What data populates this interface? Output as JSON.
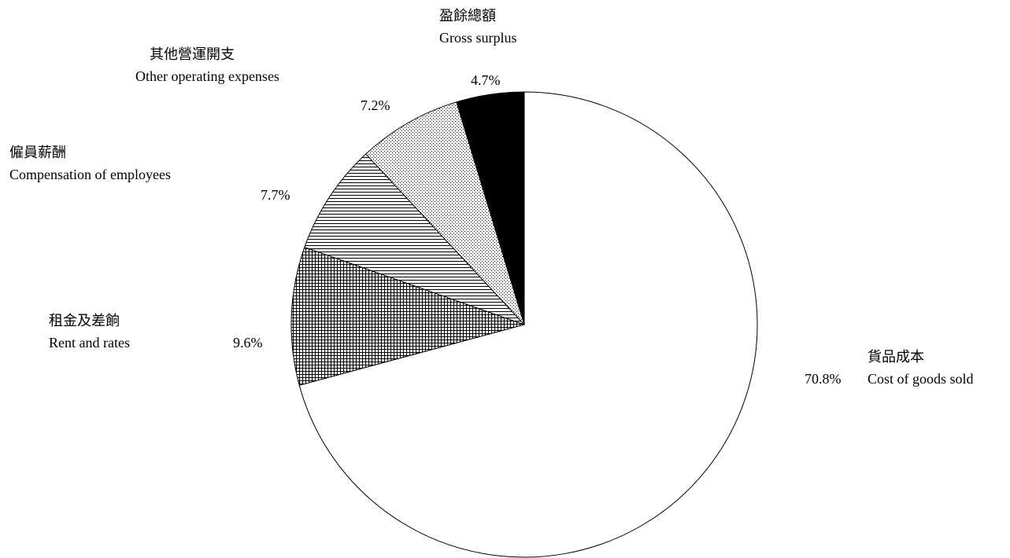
{
  "chart_data": {
    "type": "pie",
    "start_angle_deg": 90,
    "direction": "clockwise",
    "slices": [
      {
        "label_zh": "貨品成本",
        "label_en": "Cost of goods sold",
        "value": 70.8,
        "value_label": "70.8%",
        "pattern": "plain-white"
      },
      {
        "label_zh": "租金及差餉",
        "label_en": "Rent and rates",
        "value": 9.6,
        "value_label": "9.6%",
        "pattern": "crosshatch"
      },
      {
        "label_zh": "僱員薪酬",
        "label_en": "Compensation of employees",
        "value": 7.7,
        "value_label": "7.7%",
        "pattern": "horizontal-lines"
      },
      {
        "label_zh": "其他營運開支",
        "label_en": "Other operating expenses",
        "value": 7.2,
        "value_label": "7.2%",
        "pattern": "dots"
      },
      {
        "label_zh": "盈餘總額",
        "label_en": "Gross surplus",
        "value": 4.7,
        "value_label": "4.7%",
        "pattern": "solid-black"
      }
    ]
  }
}
